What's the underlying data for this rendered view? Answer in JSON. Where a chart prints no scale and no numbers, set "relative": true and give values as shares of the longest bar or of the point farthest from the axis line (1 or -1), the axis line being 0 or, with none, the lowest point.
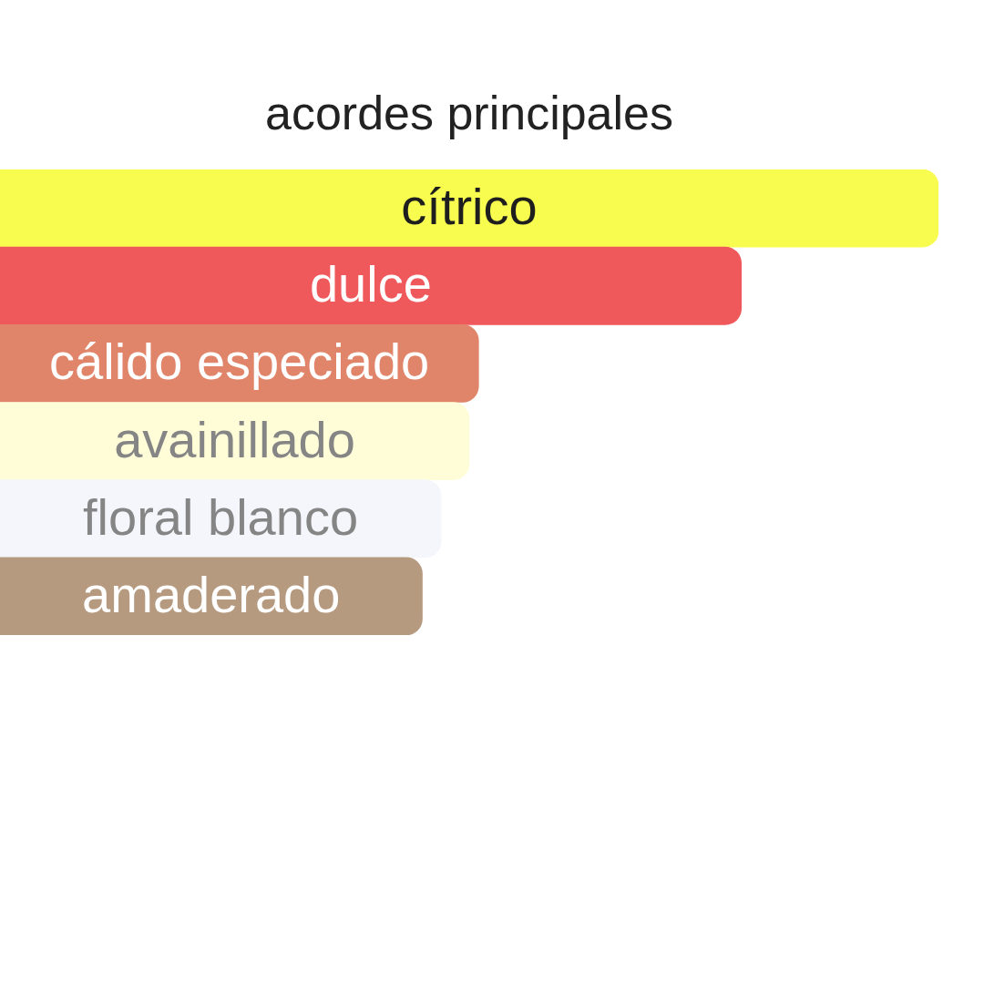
{
  "chart_data": {
    "type": "bar",
    "orientation": "horizontal",
    "relative": true,
    "title": "acordes principales",
    "categories": [
      "cítrico",
      "dulce",
      "cálido especiado",
      "avainillado",
      "floral blanco",
      "amaderado"
    ],
    "values": [
      1,
      0.79,
      0.51,
      0.5,
      0.47,
      0.45
    ],
    "colors": [
      "#f7fc4f",
      "#f0595c",
      "#e0856a",
      "#fefdd8",
      "#f5f6fb",
      "#b69a80"
    ]
  }
}
